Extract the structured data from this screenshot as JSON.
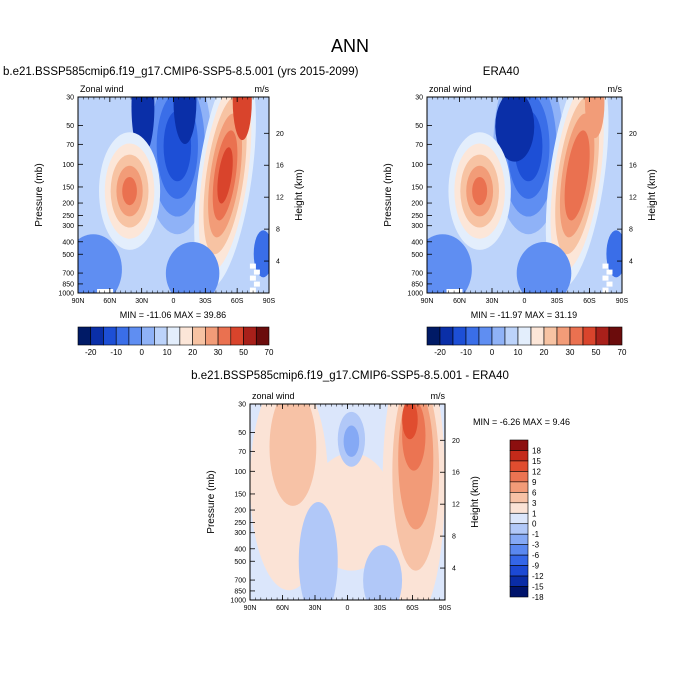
{
  "page": {
    "title": "ANN"
  },
  "colors": {
    "abs_scale": [
      "#001a66",
      "#0a2fa8",
      "#1d4fd6",
      "#3a6ee8",
      "#5f8ef2",
      "#8fb2f7",
      "#bcd3fa",
      "#e3eefc",
      "#fce6d8",
      "#f7c3a3",
      "#f29c78",
      "#ea7150",
      "#d9442c",
      "#a8201a",
      "#6b0c0c"
    ],
    "diff_scale": [
      "#00136b",
      "#0a2ca6",
      "#1c49d4",
      "#3466e8",
      "#5a88f0",
      "#85a9f5",
      "#b1c8f8",
      "#dbe6fb",
      "#fbe3d6",
      "#f7c2a6",
      "#f29b78",
      "#eb7452",
      "#e04d2f",
      "#c42a1a",
      "#8c0f0f"
    ]
  },
  "chart_data": [
    {
      "type": "heatmap",
      "title": "b.e21.BSSP585cmip6.f19_g17.CMIP6-SSP5-8.5.001 (yrs 2015-2099)",
      "left_label": "Zonal wind",
      "right_label": "m/s",
      "xlabel": "",
      "ylabel": "Pressure (mb)",
      "ylabel_right": "Height (km)",
      "x_ticks": [
        "90N",
        "60N",
        "30N",
        "0",
        "30S",
        "60S",
        "90S"
      ],
      "y_ticks": [
        "30",
        "50",
        "70",
        "100",
        "150",
        "200",
        "250",
        "300",
        "400",
        "500",
        "700",
        "850",
        "1000"
      ],
      "y2_ticks": [
        "20",
        "16",
        "12",
        "8",
        "4"
      ],
      "min_max_text": "MIN = -11.06  MAX =  39.86",
      "colorbar_labels": [
        "-20",
        "-10",
        "0",
        "10",
        "20",
        "30",
        "50",
        "70"
      ],
      "features": [
        {
          "lat": -45,
          "pressure": 200,
          "value": 39.86
        },
        {
          "lat": 30,
          "pressure": 200,
          "value": 18
        },
        {
          "lat": 5,
          "pressure": 50,
          "value": -11.06
        },
        {
          "lat": 35,
          "pressure": 30,
          "value": -8
        }
      ]
    },
    {
      "type": "heatmap",
      "title": "ERA40",
      "left_label": "zonal wind",
      "right_label": "m/s",
      "xlabel": "",
      "ylabel": "Pressure (mb)",
      "ylabel_right": "Height (km)",
      "x_ticks": [
        "90N",
        "60N",
        "30N",
        "0",
        "30S",
        "60S",
        "90S"
      ],
      "y_ticks": [
        "30",
        "50",
        "70",
        "100",
        "150",
        "200",
        "250",
        "300",
        "400",
        "500",
        "700",
        "850",
        "1000"
      ],
      "y2_ticks": [
        "20",
        "16",
        "12",
        "8",
        "4"
      ],
      "min_max_text": "MIN = -11.97  MAX =  31.19",
      "colorbar_labels": [
        "-20",
        "-10",
        "0",
        "10",
        "20",
        "30",
        "50",
        "70"
      ],
      "features": [
        {
          "lat": -45,
          "pressure": 200,
          "value": 31.19
        },
        {
          "lat": 30,
          "pressure": 200,
          "value": 25
        },
        {
          "lat": 10,
          "pressure": 50,
          "value": -11.97
        }
      ]
    },
    {
      "type": "heatmap",
      "title": "b.e21.BSSP585cmip6.f19_g17.CMIP6-SSP5-8.5.001 - ERA40",
      "left_label": "zonal wind",
      "right_label": "m/s",
      "xlabel": "",
      "ylabel": "Pressure (mb)",
      "ylabel_right": "Height (km)",
      "x_ticks": [
        "90N",
        "60N",
        "30N",
        "0",
        "30S",
        "60S",
        "90S"
      ],
      "y_ticks": [
        "30",
        "50",
        "70",
        "100",
        "150",
        "200",
        "250",
        "300",
        "400",
        "500",
        "700",
        "850",
        "1000"
      ],
      "y2_ticks": [
        "20",
        "16",
        "12",
        "8",
        "4"
      ],
      "min_max_text": "MIN = -6.26  MAX =  9.46",
      "colorbar_labels": [
        "18",
        "15",
        "12",
        "9",
        "6",
        "3",
        "1",
        "0",
        "-1",
        "-3",
        "-6",
        "-9",
        "-12",
        "-15",
        "-18"
      ],
      "features": [
        {
          "lat": -55,
          "pressure": 50,
          "value": 9.46
        },
        {
          "lat": 5,
          "pressure": 70,
          "value": -6.26
        }
      ]
    }
  ]
}
